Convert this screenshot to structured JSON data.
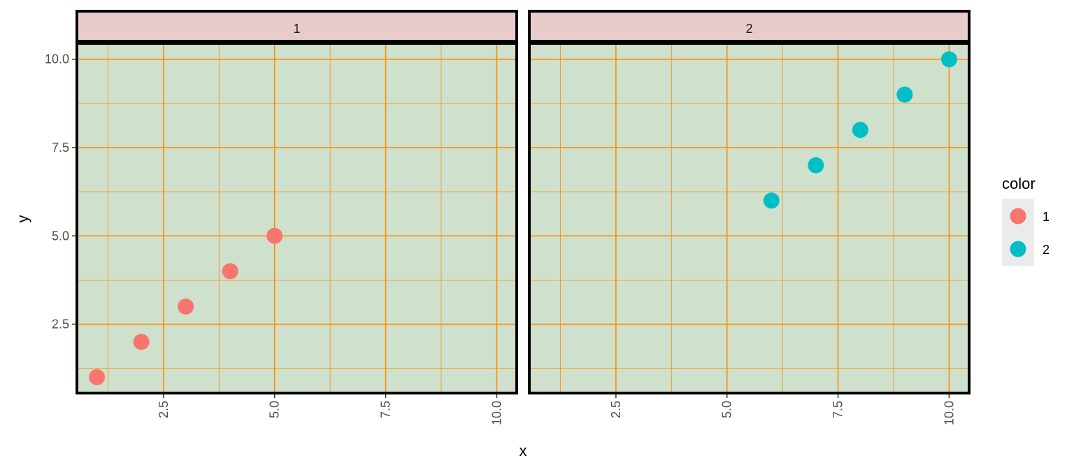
{
  "chart_data": {
    "type": "scatter",
    "facets": [
      {
        "label": "1",
        "points": [
          {
            "x": 1,
            "y": 1
          },
          {
            "x": 2,
            "y": 2
          },
          {
            "x": 3,
            "y": 3
          },
          {
            "x": 4,
            "y": 4
          },
          {
            "x": 5,
            "y": 5
          }
        ]
      },
      {
        "label": "2",
        "points": [
          {
            "x": 6,
            "y": 6
          },
          {
            "x": 7,
            "y": 7
          },
          {
            "x": 8,
            "y": 8
          },
          {
            "x": 9,
            "y": 9
          },
          {
            "x": 10,
            "y": 10
          }
        ]
      }
    ],
    "series": [
      {
        "name": "1",
        "color": "#F8766D"
      },
      {
        "name": "2",
        "color": "#00BFC4"
      }
    ],
    "xlabel": "x",
    "ylabel": "y",
    "xlim": [
      0.55,
      10.45
    ],
    "ylim": [
      0.55,
      10.45
    ],
    "x_ticks": [
      "2.5",
      "5.0",
      "7.5",
      "10.0"
    ],
    "y_ticks": [
      "2.5",
      "5.0",
      "7.5",
      "10.0"
    ],
    "grid": true,
    "legend": {
      "title": "color",
      "position": "right"
    },
    "colors": {
      "panel_background": "#CFE0CD",
      "grid_lines": "#FF8C00",
      "strip_background": "#E8CCCC",
      "panel_border": "#000000"
    }
  }
}
